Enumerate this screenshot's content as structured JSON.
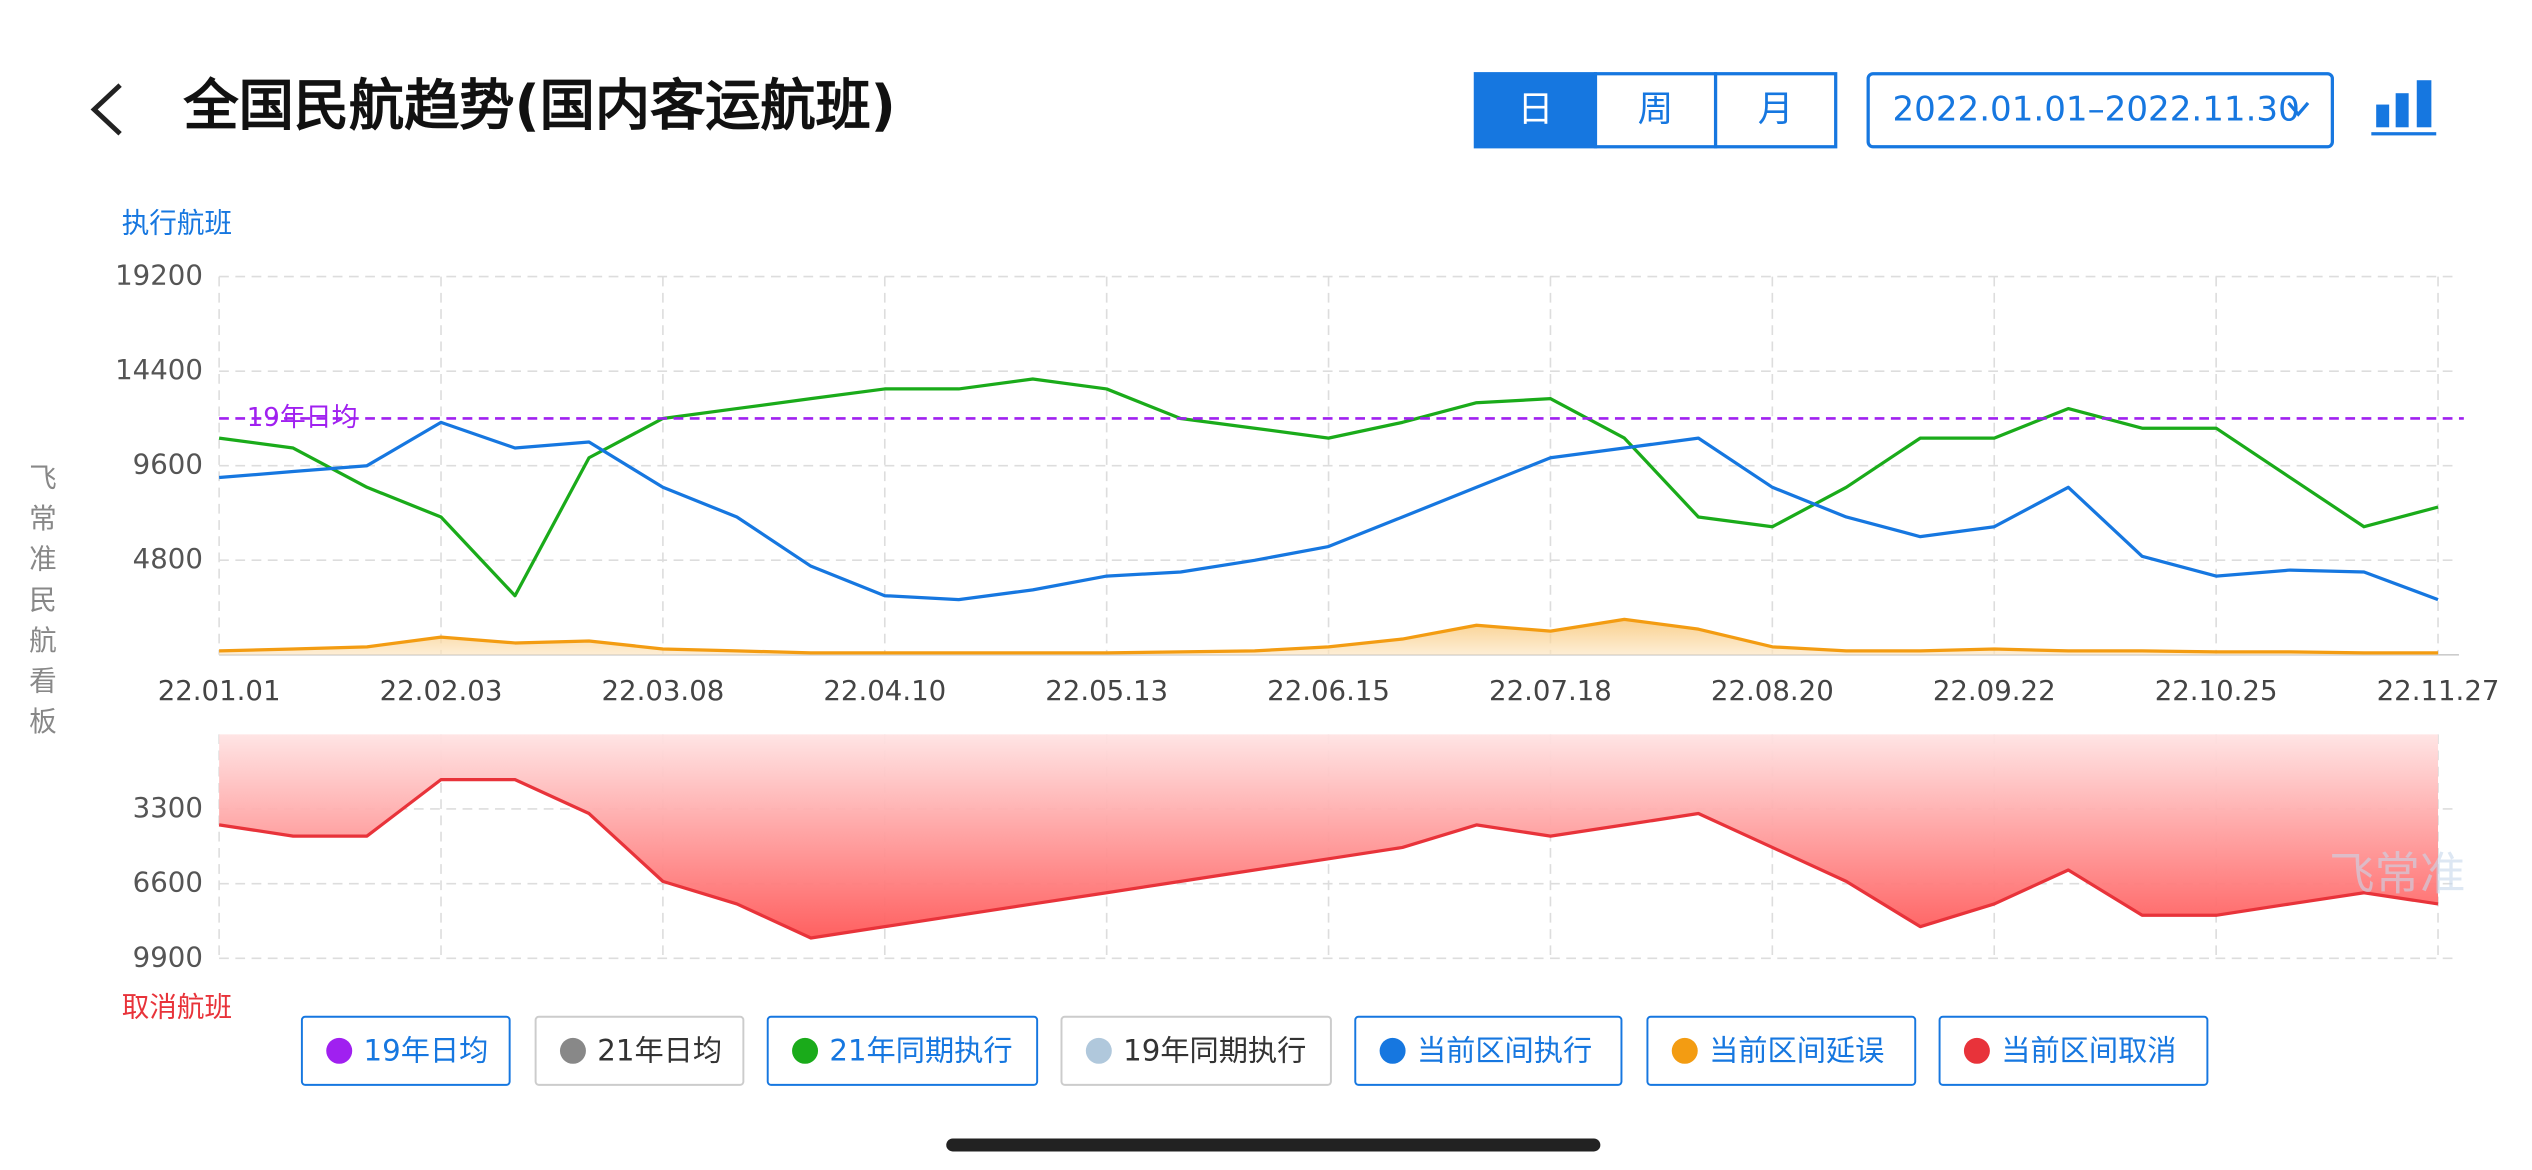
{
  "header": {
    "title": "全国民航趋势(国内客运航班)",
    "tabs": [
      "日",
      "周",
      "月"
    ],
    "active_tab": 0,
    "date_range": "2022.01.01–2022.11.30"
  },
  "side_label": "飞常准民航看板",
  "watermark": "飞常准",
  "chart_data": [
    {
      "type": "line",
      "y_label": "执行航班",
      "categories": [
        "22.01.01",
        null,
        null,
        "22.02.03",
        null,
        null,
        "22.03.08",
        null,
        null,
        "22.04.10",
        null,
        null,
        "22.05.13",
        null,
        null,
        "22.06.15",
        null,
        null,
        "22.07.18",
        null,
        null,
        "22.08.20",
        null,
        null,
        "22.09.22",
        null,
        null,
        "22.10.25",
        null,
        null,
        "22.11.27"
      ],
      "ylim": [
        0,
        19200
      ],
      "yticks": [
        4800,
        9600,
        14400,
        19200
      ],
      "grid": true,
      "reference": {
        "label": "19年日均",
        "value": 12000,
        "color": "#a020f0"
      },
      "series": [
        {
          "color": "#1aab1a",
          "area": false,
          "values": [
            11000,
            10500,
            8500,
            7000,
            3000,
            10000,
            12000,
            12500,
            13000,
            13500,
            13500,
            14000,
            13500,
            12000,
            11500,
            11000,
            11800,
            12800,
            13000,
            11000,
            7000,
            6500,
            8500,
            11000,
            11000,
            12500,
            11500,
            11500,
            9000,
            6500,
            7500
          ]
        },
        {
          "color": "#1677e0",
          "area": false,
          "values": [
            9000,
            9300,
            9600,
            11800,
            10500,
            10800,
            8500,
            7000,
            4500,
            3000,
            2800,
            3300,
            4000,
            4200,
            4800,
            5500,
            7000,
            8500,
            10000,
            10500,
            11000,
            8500,
            7000,
            6000,
            6500,
            8500,
            5000,
            4000,
            4300,
            4200,
            2800
          ]
        },
        {
          "color": "#f39c12",
          "area": true,
          "values": [
            200,
            300,
            400,
            900,
            600,
            700,
            300,
            200,
            100,
            100,
            100,
            100,
            100,
            150,
            200,
            400,
            800,
            1500,
            1200,
            1800,
            1300,
            400,
            200,
            200,
            300,
            200,
            200,
            150,
            150,
            100,
            100
          ]
        }
      ]
    },
    {
      "type": "area",
      "y_label": "取消航班",
      "inverted": true,
      "ylim": [
        0,
        9900
      ],
      "yticks": [
        3300,
        6600,
        9900
      ],
      "grid": true,
      "series": [
        {
          "color": "#e8333a",
          "area": true,
          "values": [
            4000,
            4500,
            4500,
            2000,
            2000,
            3500,
            6500,
            7500,
            9000,
            8500,
            8000,
            7500,
            7000,
            6500,
            6000,
            5500,
            5000,
            4000,
            4500,
            4000,
            3500,
            5000,
            6500,
            8500,
            7500,
            6000,
            8000,
            8000,
            7500,
            7000,
            7500
          ]
        }
      ]
    }
  ],
  "legend": [
    {
      "name": "19年日均",
      "color": "#a020f0",
      "active": true
    },
    {
      "name": "21年日均",
      "color": "#888888",
      "active": false
    },
    {
      "name": "21年同期执行",
      "color": "#1aab1a",
      "active": true
    },
    {
      "name": "19年同期执行",
      "color": "#b0c8dc",
      "active": false
    },
    {
      "name": "当前区间执行",
      "color": "#1677e0",
      "active": true
    },
    {
      "name": "当前区间延误",
      "color": "#f39c12",
      "active": true
    },
    {
      "name": "当前区间取消",
      "color": "#e8333a",
      "active": true
    }
  ]
}
